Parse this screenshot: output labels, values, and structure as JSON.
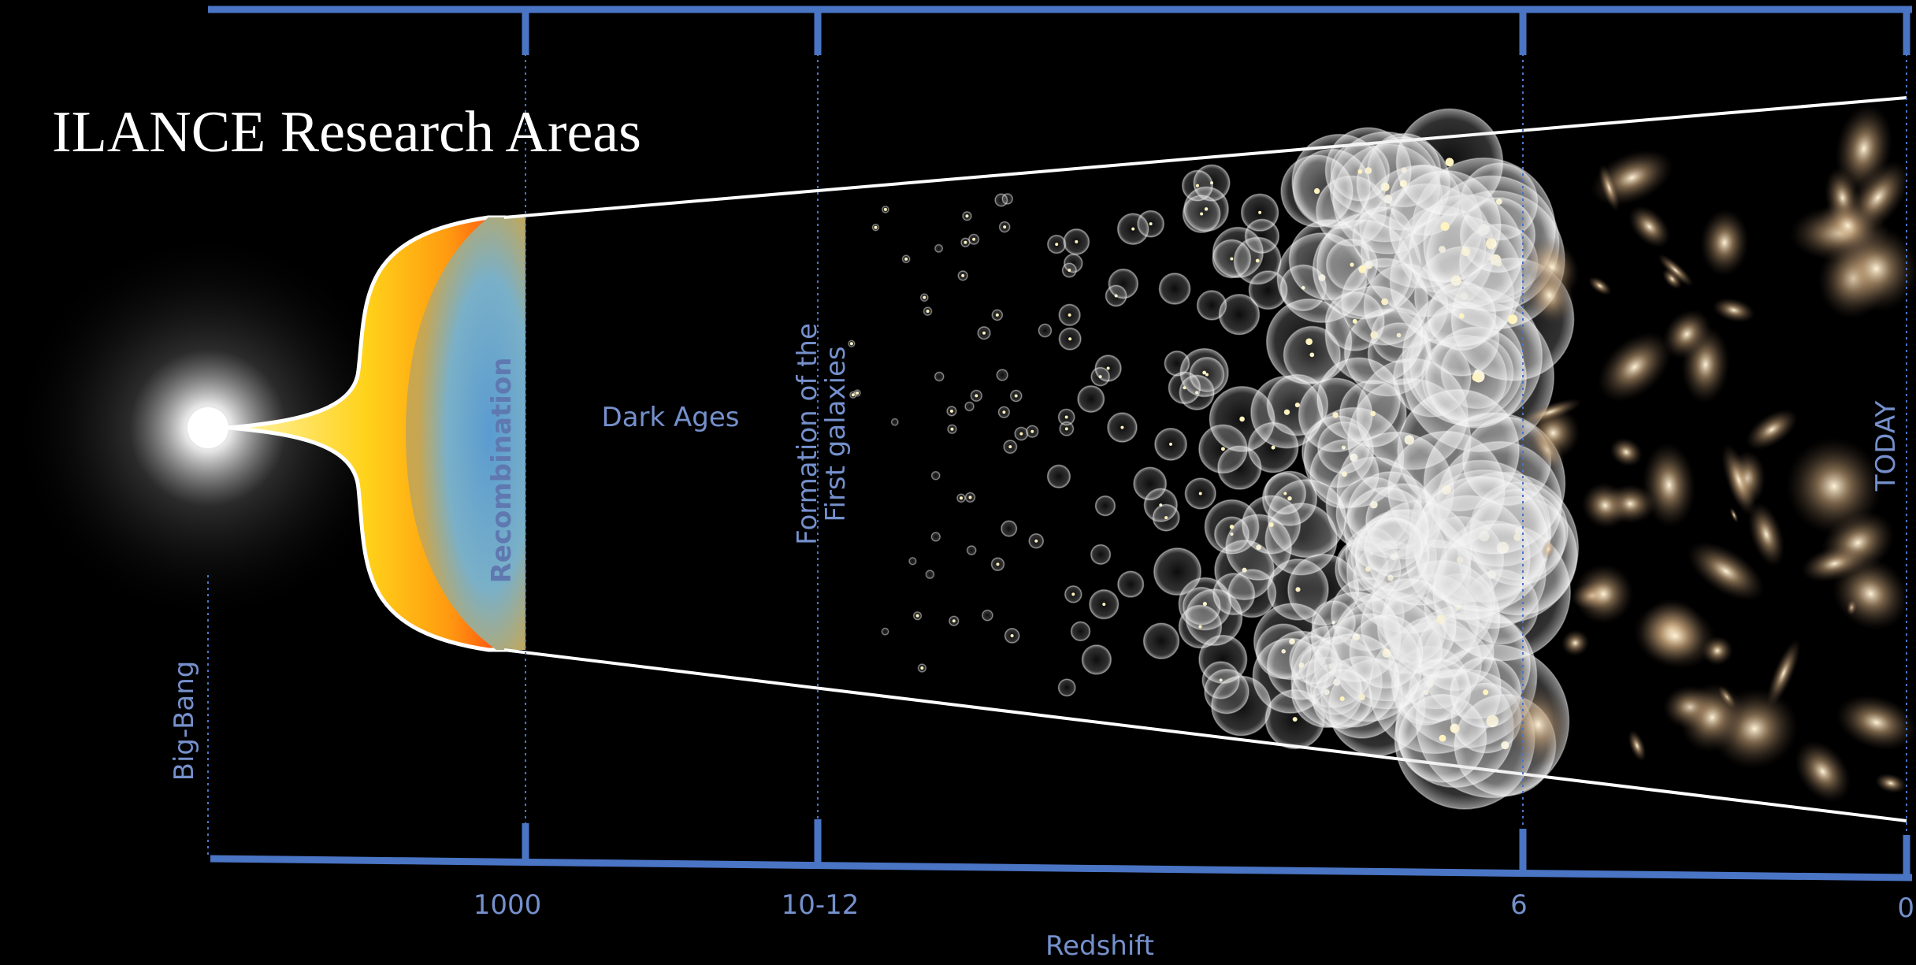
{
  "title": "ILANCE Research Areas",
  "epochs": {
    "big_bang": "Big-Bang",
    "recombination": "Recombination",
    "dark_ages": "Dark Ages",
    "first_galaxies": [
      "Formation of the",
      "First galaxies"
    ],
    "today": "TODAY"
  },
  "axis": {
    "label": "Redshift",
    "ticks": [
      "1000",
      "10-12",
      "6",
      "0"
    ]
  }
}
